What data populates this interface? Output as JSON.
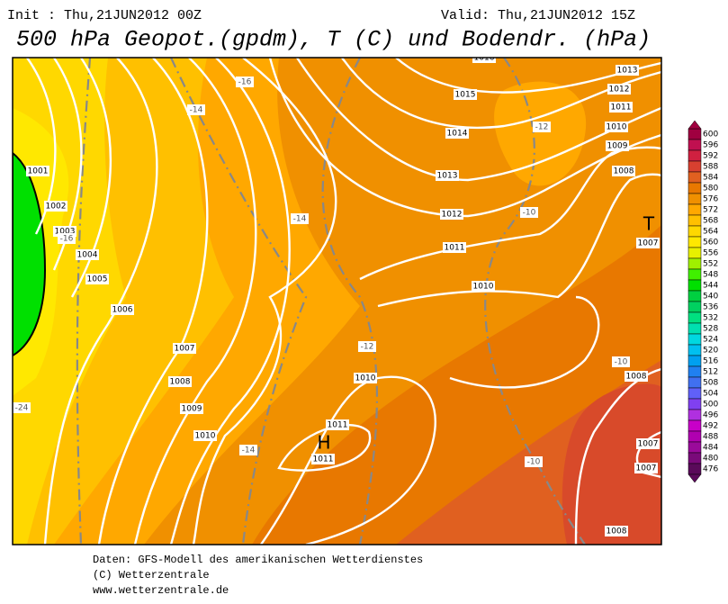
{
  "header": {
    "init": "Init : Thu,21JUN2012 00Z",
    "valid": "Valid: Thu,21JUN2012 15Z",
    "title": "500 hPa Geopot.(gpdm), T (C) und Bodendr. (hPa)"
  },
  "map": {
    "isobar_labels": [
      1001,
      1002,
      1003,
      1004,
      1005,
      1006,
      1007,
      1008,
      1009,
      1010,
      1010,
      1011,
      1011,
      1010,
      1011,
      1012,
      1013,
      1014,
      1015,
      1016,
      1013,
      1012,
      1011,
      1010,
      1009,
      1008,
      1007,
      1008,
      1007,
      1007,
      1008
    ],
    "temperature_labels": [
      -16,
      -14,
      -14,
      -12,
      -10,
      -12,
      -10,
      -10,
      -14,
      -16,
      -24
    ],
    "pressure_centers": [
      "H",
      "T"
    ]
  },
  "legend": {
    "levels": [
      600,
      596,
      592,
      588,
      584,
      580,
      576,
      572,
      568,
      564,
      560,
      556,
      552,
      548,
      544,
      540,
      536,
      532,
      528,
      524,
      520,
      516,
      512,
      508,
      504,
      500,
      496,
      492,
      488,
      484,
      480,
      476
    ],
    "colors": [
      "#a00040",
      "#c01050",
      "#d02040",
      "#d84030",
      "#e06020",
      "#e87800",
      "#f09000",
      "#ffa800",
      "#ffc000",
      "#ffd800",
      "#ffe800",
      "#e8f000",
      "#a0f000",
      "#40f000",
      "#00e000",
      "#00d040",
      "#00d060",
      "#00e080",
      "#00e0b0",
      "#00d8e0",
      "#00c0f0",
      "#00a0f0",
      "#2080f0",
      "#4070f0",
      "#6060f8",
      "#8040f0",
      "#b030e0",
      "#c800c8",
      "#b000b0",
      "#9a0a9a",
      "#7a0a7a",
      "#5a0a5a"
    ]
  },
  "footer": [
    "Daten: GFS-Modell des amerikanischen Wetterdienstes",
    "(C) Wetterzentrale",
    "www.wetterzentrale.de"
  ]
}
